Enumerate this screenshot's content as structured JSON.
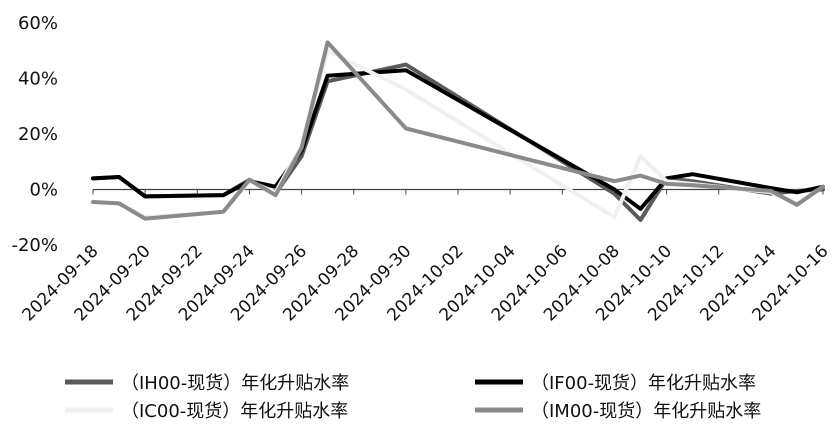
{
  "chart_data": {
    "type": "line",
    "title": "",
    "xlabel": "",
    "ylabel": "",
    "ylim": [
      -0.2,
      0.6
    ],
    "yticks": [
      "-20%",
      "0%",
      "20%",
      "40%",
      "60%"
    ],
    "ytick_values": [
      -0.2,
      0,
      0.2,
      0.4,
      0.6
    ],
    "xlim": [
      "2024-09-18",
      "2024-10-16"
    ],
    "xticks": [
      "2024-09-18",
      "2024-09-20",
      "2024-09-22",
      "2024-09-24",
      "2024-09-26",
      "2024-09-28",
      "2024-09-30",
      "2024-10-02",
      "2024-10-04",
      "2024-10-06",
      "2024-10-08",
      "2024-10-10",
      "2024-10-12",
      "2024-10-14",
      "2024-10-16"
    ],
    "grid": false,
    "legend": "bottom",
    "series": [
      {
        "name": "（IH00-现货）年化升贴水率",
        "color": "#5a5a5a",
        "width": 4,
        "points": [
          [
            "2024-09-18",
            0.04
          ],
          [
            "2024-09-19",
            0.045
          ],
          [
            "2024-09-20",
            -0.025
          ],
          [
            "2024-09-23",
            -0.02
          ],
          [
            "2024-09-24",
            0.035
          ],
          [
            "2024-09-25",
            -0.015
          ],
          [
            "2024-09-26",
            0.12
          ],
          [
            "2024-09-27",
            0.39
          ],
          [
            "2024-09-30",
            0.45
          ],
          [
            "2024-10-08",
            -0.015
          ],
          [
            "2024-10-09",
            -0.11
          ],
          [
            "2024-10-10",
            0.04
          ],
          [
            "2024-10-11",
            0.03
          ],
          [
            "2024-10-14",
            -0.015
          ],
          [
            "2024-10-15",
            -0.005
          ],
          [
            "2024-10-16",
            0.0
          ]
        ]
      },
      {
        "name": "（IF00-现货）年化升贴水率",
        "color": "#000000",
        "width": 4,
        "points": [
          [
            "2024-09-18",
            0.04
          ],
          [
            "2024-09-19",
            0.045
          ],
          [
            "2024-09-20",
            -0.025
          ],
          [
            "2024-09-23",
            -0.02
          ],
          [
            "2024-09-24",
            0.03
          ],
          [
            "2024-09-25",
            0.01
          ],
          [
            "2024-09-26",
            0.14
          ],
          [
            "2024-09-27",
            0.41
          ],
          [
            "2024-09-30",
            0.43
          ],
          [
            "2024-10-08",
            0.0
          ],
          [
            "2024-10-09",
            -0.07
          ],
          [
            "2024-10-10",
            0.04
          ],
          [
            "2024-10-11",
            0.055
          ],
          [
            "2024-10-14",
            0.005
          ],
          [
            "2024-10-15",
            -0.01
          ],
          [
            "2024-10-16",
            0.01
          ]
        ]
      },
      {
        "name": "（IC00-现货）年化升贴水率",
        "color": "#f0f0f0",
        "width": 4,
        "points": [
          [
            "2024-09-18",
            -0.045
          ],
          [
            "2024-09-19",
            -0.05
          ],
          [
            "2024-09-20",
            -0.1
          ],
          [
            "2024-09-23",
            -0.08
          ],
          [
            "2024-09-24",
            0.03
          ],
          [
            "2024-09-25",
            -0.01
          ],
          [
            "2024-09-26",
            0.16
          ],
          [
            "2024-09-27",
            0.5
          ],
          [
            "2024-09-30",
            0.36
          ],
          [
            "2024-10-08",
            -0.1
          ],
          [
            "2024-10-09",
            0.12
          ],
          [
            "2024-10-10",
            0.03
          ],
          [
            "2024-10-11",
            0.02
          ],
          [
            "2024-10-14",
            -0.01
          ],
          [
            "2024-10-15",
            -0.05
          ],
          [
            "2024-10-16",
            0.01
          ]
        ]
      },
      {
        "name": "（IM00-现货）年化升贴水率",
        "color": "#8a8a8a",
        "width": 4,
        "points": [
          [
            "2024-09-18",
            -0.045
          ],
          [
            "2024-09-19",
            -0.05
          ],
          [
            "2024-09-20",
            -0.105
          ],
          [
            "2024-09-23",
            -0.08
          ],
          [
            "2024-09-24",
            0.035
          ],
          [
            "2024-09-25",
            -0.02
          ],
          [
            "2024-09-26",
            0.15
          ],
          [
            "2024-09-27",
            0.53
          ],
          [
            "2024-09-30",
            0.22
          ],
          [
            "2024-10-08",
            0.03
          ],
          [
            "2024-10-09",
            0.05
          ],
          [
            "2024-10-10",
            0.02
          ],
          [
            "2024-10-11",
            0.015
          ],
          [
            "2024-10-14",
            -0.005
          ],
          [
            "2024-10-15",
            -0.055
          ],
          [
            "2024-10-16",
            0.01
          ]
        ]
      }
    ]
  }
}
